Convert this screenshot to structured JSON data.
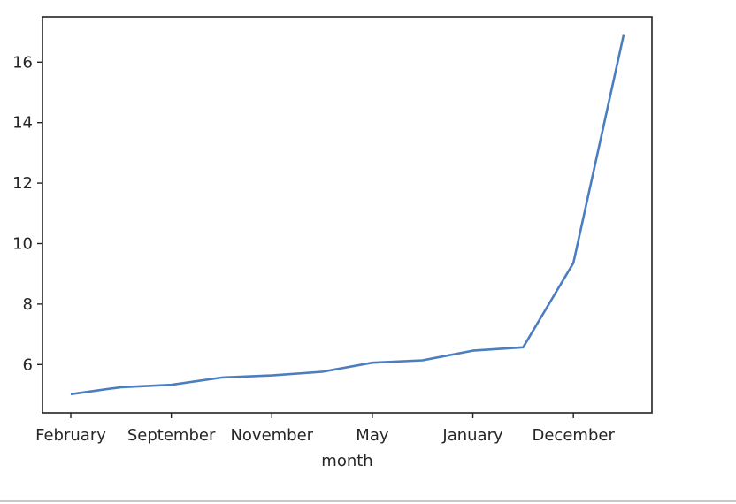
{
  "chart_data": {
    "type": "line",
    "title": "",
    "xlabel": "month",
    "ylabel": "",
    "x": [
      "February",
      "",
      "September",
      "",
      "November",
      "",
      "May",
      "",
      "January",
      "",
      "December",
      ""
    ],
    "x_tick_labels": [
      "February",
      "September",
      "November",
      "May",
      "January",
      "December"
    ],
    "series": [
      {
        "values": [
          5.02,
          5.25,
          5.33,
          5.57,
          5.64,
          5.76,
          6.06,
          6.14,
          6.46,
          6.57,
          9.36,
          16.9
        ]
      }
    ],
    "ylim": [
      4.4,
      17.5
    ],
    "y_ticks": [
      6,
      8,
      10,
      12,
      14,
      16
    ],
    "grid": false,
    "legend": "none",
    "line_color": "#4c7ebf"
  }
}
